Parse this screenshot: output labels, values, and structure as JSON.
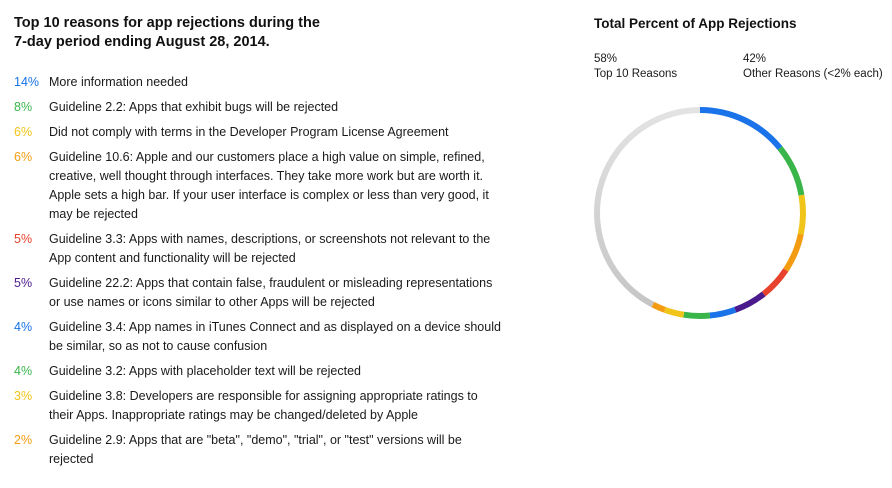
{
  "left_title": [
    "Top 10 reasons for app rejections during the",
    "7-day period ending August 28, 2014."
  ],
  "reasons": [
    {
      "pct": "14%",
      "lines": [
        "More information needed"
      ],
      "color": "#1a73e8"
    },
    {
      "pct": "8%",
      "lines": [
        "Guideline 2.2: Apps that exhibit bugs will be rejected"
      ],
      "color": "#39b54a"
    },
    {
      "pct": "6%",
      "lines": [
        "Did not comply with terms in the Developer Program License Agreement"
      ],
      "color": "#f0c419"
    },
    {
      "pct": "6%",
      "lines": [
        "Guideline 10.6: Apple and our customers place a high value on simple, refined,",
        "creative, well thought through interfaces. They take more work but are worth it.",
        "Apple sets a high bar. If your user interface is complex or less than very good, it",
        "may be rejected"
      ],
      "color": "#f39c12"
    },
    {
      "pct": "5%",
      "lines": [
        "Guideline 3.3: Apps with names, descriptions, or screenshots not relevant to the",
        "App content and functionality will be rejected"
      ],
      "color": "#e8412c"
    },
    {
      "pct": "5%",
      "lines": [
        "Guideline 22.2: Apps that contain false, fraudulent or misleading representations",
        "or use names or icons similar to other Apps will be rejected"
      ],
      "color": "#4b1a8c"
    },
    {
      "pct": "4%",
      "lines": [
        "Guideline 3.4: App names in iTunes Connect and as displayed on a device should",
        "be similar, so as not to cause confusion"
      ],
      "color": "#1a73e8"
    },
    {
      "pct": "4%",
      "lines": [
        "Guideline 3.2: Apps with placeholder text will be rejected"
      ],
      "color": "#39b54a"
    },
    {
      "pct": "3%",
      "lines": [
        "Guideline 3.8: Developers are responsible for assigning appropriate ratings to",
        "their Apps. Inappropriate ratings may be changed/deleted by Apple"
      ],
      "color": "#f0c419"
    },
    {
      "pct": "2%",
      "lines": [
        "Guideline 2.9: Apps that are \"beta\", \"demo\", \"trial\", or \"test\" versions will be",
        "rejected"
      ],
      "color": "#f39c12"
    }
  ],
  "chart_data": {
    "type": "pie",
    "title": "Total Percent of App Rejections",
    "legend": [
      {
        "value": "58%",
        "label": "Top 10 Reasons"
      },
      {
        "value": "42%",
        "label": "Other Reasons (<2% each)"
      }
    ],
    "legend_placement": "top",
    "slices": [
      {
        "value": 14,
        "color": "#1a73e8"
      },
      {
        "value": 8,
        "color": "#39b54a"
      },
      {
        "value": 6,
        "color": "#f0c419"
      },
      {
        "value": 6,
        "color": "#f39c12"
      },
      {
        "value": 5,
        "color": "#e8412c"
      },
      {
        "value": 5,
        "color": "#4b1a8c"
      },
      {
        "value": 4,
        "color": "#1a73e8"
      },
      {
        "value": 4,
        "color": "#39b54a"
      },
      {
        "value": 3,
        "color": "#f0c419"
      },
      {
        "value": 2,
        "color": "#f39c12"
      },
      {
        "value": 42,
        "color": "#c4c4c4",
        "gradient_to": "#e3e3e3"
      }
    ]
  }
}
